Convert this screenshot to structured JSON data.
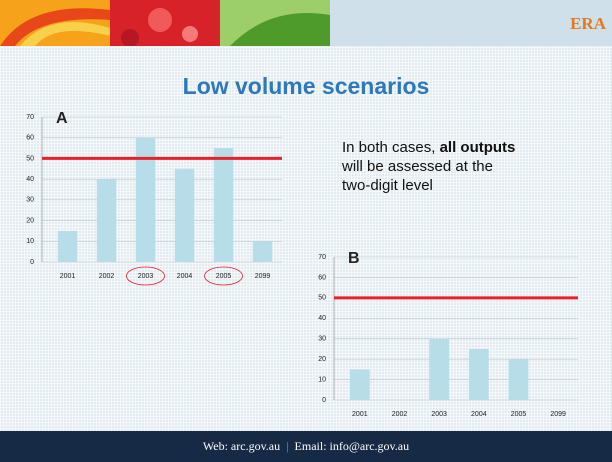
{
  "header": {
    "brand": "ERA"
  },
  "title": "Low volume scenarios",
  "body": {
    "line1": "In both cases, ",
    "bold": "all outputs",
    "line2": "will be assessed at the",
    "line3": "two-digit level"
  },
  "footer": {
    "web": "Web: arc.gov.au",
    "separator": "|",
    "email": "Email: info@arc.gov.au"
  },
  "chart_data": [
    {
      "type": "bar",
      "annotation": "A",
      "categories": [
        "2001",
        "2002",
        "2003",
        "2004",
        "2005",
        "2099"
      ],
      "values": [
        15,
        40,
        60,
        45,
        55,
        10
      ],
      "color": "#b7dde8",
      "ylim": [
        0,
        70
      ],
      "yticks": [
        0,
        10,
        20,
        30,
        40,
        50,
        60,
        70
      ],
      "grid": true,
      "reference_line": {
        "value": 50,
        "color": "#e8202a"
      },
      "circled_categories": [
        2,
        4
      ]
    },
    {
      "type": "bar",
      "annotation": "B",
      "categories": [
        "2001",
        "2002",
        "2003",
        "2004",
        "2005",
        "2099"
      ],
      "values": [
        15,
        null,
        30,
        25,
        20,
        null
      ],
      "color": "#b7dde8",
      "ylim": [
        0,
        70
      ],
      "yticks": [
        0,
        10,
        20,
        30,
        40,
        50,
        60,
        70
      ],
      "grid": true,
      "reference_line": {
        "value": 50,
        "color": "#e8202a"
      },
      "circled_categories": []
    }
  ]
}
